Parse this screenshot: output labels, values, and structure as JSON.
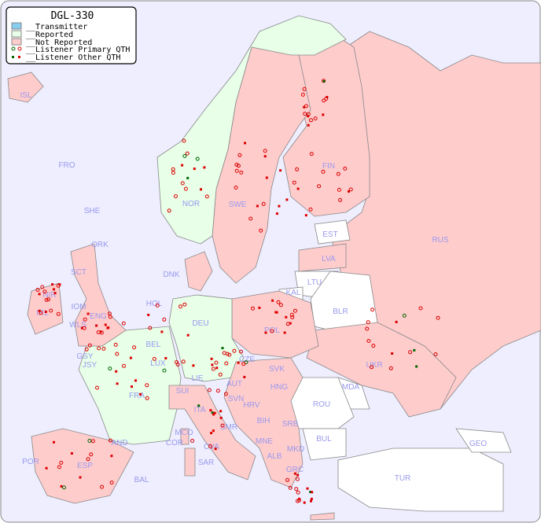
{
  "title": "DGL-330",
  "legend": {
    "items": [
      {
        "label": "__Transmitter",
        "color": "#88ccee"
      },
      {
        "label": "__Reported",
        "color": "#e8ffe8"
      },
      {
        "label": "__Not Reported",
        "color": "#ffcccc"
      },
      {
        "label": "__Listener Primary QTH",
        "marker": "ring",
        "colors": [
          "#006600",
          "#dd0000"
        ]
      },
      {
        "label": "__Listener Other QTH",
        "marker": "square",
        "colors": [
          "#006600",
          "#dd0000"
        ]
      }
    ]
  },
  "colors": {
    "sea": "#eeeeff",
    "reported": "#e8ffe8",
    "not_reported": "#ffcccc",
    "no_data": "#ffffff",
    "label": "#9999ee",
    "border": "#888888"
  },
  "countries": [
    "ISL",
    "FRO",
    "SHE",
    "ORK",
    "NOR",
    "SWE",
    "FIN",
    "EST",
    "LVA",
    "LTU",
    "KAL",
    "BLR",
    "RUS",
    "DNK",
    "HOL",
    "DEU",
    "POL",
    "UKR",
    "SCT",
    "NIR",
    "IRL",
    "IOM",
    "WLS",
    "ENG",
    "GSY",
    "JSY",
    "BEL",
    "LUX",
    "FRA",
    "SUI",
    "LIE",
    "AUT",
    "CZE",
    "SVK",
    "HNG",
    "MDA",
    "ROU",
    "SVN",
    "HRV",
    "BIH",
    "SRB",
    "BUL",
    "ITA",
    "SMR",
    "MNE",
    "ALB",
    "MKD",
    "MCO",
    "COR",
    "CVA",
    "SAR",
    "AND",
    "POR",
    "ESP",
    "BAL",
    "GRC",
    "TUR",
    "GEO"
  ]
}
